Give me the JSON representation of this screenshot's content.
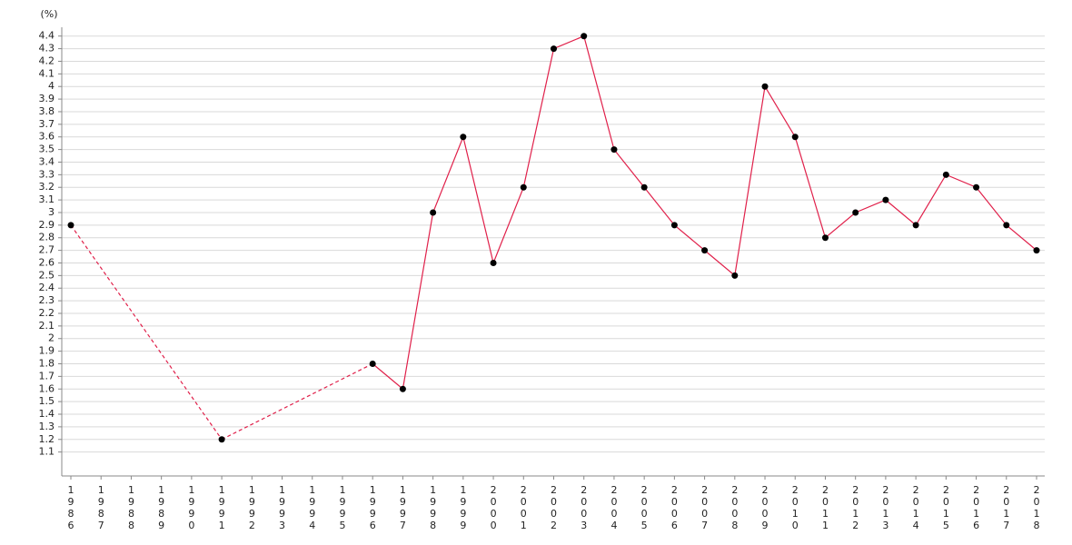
{
  "chart_data": {
    "type": "line",
    "y_label": "(%)",
    "categories": [
      "1986",
      "1987",
      "1988",
      "1989",
      "1990",
      "1991",
      "1992",
      "1993",
      "1994",
      "1995",
      "1996",
      "1997",
      "1998",
      "1999",
      "2000",
      "2001",
      "2002",
      "2003",
      "2004",
      "2005",
      "2006",
      "2007",
      "2008",
      "2009",
      "2010",
      "2011",
      "2012",
      "2013",
      "2014",
      "2015",
      "2016",
      "2017",
      "2018"
    ],
    "series": [
      {
        "color": "#e0204a",
        "marker_color": "#000000",
        "values": [
          2.9,
          null,
          null,
          null,
          null,
          1.2,
          null,
          null,
          null,
          null,
          1.8,
          1.6,
          3.0,
          3.6,
          2.6,
          3.2,
          4.3,
          4.4,
          3.5,
          3.2,
          2.9,
          2.7,
          2.5,
          4.0,
          3.6,
          2.8,
          3.0,
          3.1,
          2.9,
          3.3,
          3.2,
          2.9,
          2.7
        ]
      }
    ],
    "gap_line": "dashed",
    "ylim": [
      0.91,
      4.47
    ],
    "yticks": [
      1.1,
      1.2,
      1.3,
      1.4,
      1.5,
      1.6,
      1.7,
      1.8,
      1.9,
      2,
      2.1,
      2.2,
      2.3,
      2.4,
      2.5,
      2.6,
      2.7,
      2.8,
      2.9,
      3,
      3.1,
      3.2,
      3.3,
      3.4,
      3.5,
      3.6,
      3.7,
      3.8,
      3.9,
      4,
      4.1,
      4.2,
      4.3,
      4.4
    ],
    "grid": true
  }
}
